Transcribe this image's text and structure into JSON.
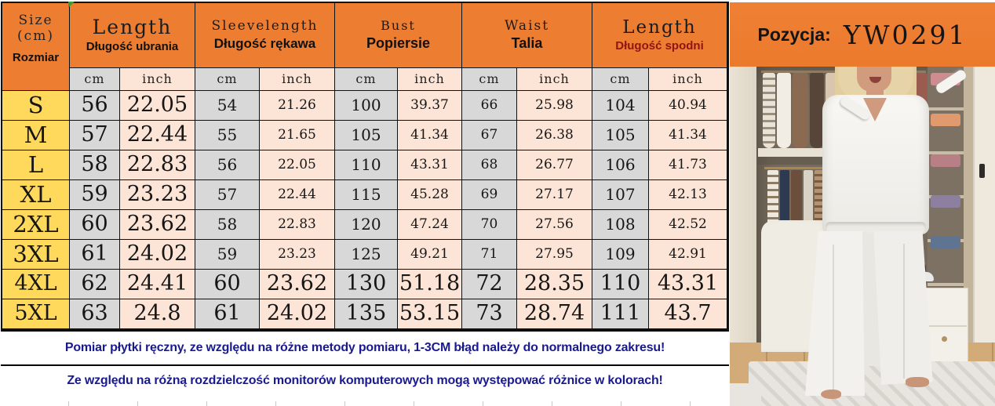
{
  "sheet": {
    "size_header": {
      "line1": "Size",
      "line2": "(cm)",
      "line3": "Rozmiar"
    },
    "columns": [
      {
        "en": "Length",
        "pl": "Długość ubrania"
      },
      {
        "en": "Sleevelength",
        "pl": "Długość rękawa"
      },
      {
        "en": "Bust",
        "pl": "Popiersie"
      },
      {
        "en": "Waist",
        "pl": "Talia"
      },
      {
        "en": "Length",
        "pl": "Długość spodni"
      }
    ],
    "units": {
      "cm": "cm",
      "inch": "inch"
    },
    "rows": [
      {
        "size": "S",
        "values": [
          "56",
          "22.05",
          "54",
          "21.26",
          "100",
          "39.37",
          "66",
          "25.98",
          "104",
          "40.94"
        ]
      },
      {
        "size": "M",
        "values": [
          "57",
          "22.44",
          "55",
          "21.65",
          "105",
          "41.34",
          "67",
          "26.38",
          "105",
          "41.34"
        ]
      },
      {
        "size": "L",
        "values": [
          "58",
          "22.83",
          "56",
          "22.05",
          "110",
          "43.31",
          "68",
          "26.77",
          "106",
          "41.73"
        ]
      },
      {
        "size": "XL",
        "values": [
          "59",
          "23.23",
          "57",
          "22.44",
          "115",
          "45.28",
          "69",
          "27.17",
          "107",
          "42.13"
        ]
      },
      {
        "size": "2XL",
        "values": [
          "60",
          "23.62",
          "58",
          "22.83",
          "120",
          "47.24",
          "70",
          "27.56",
          "108",
          "42.52"
        ]
      },
      {
        "size": "3XL",
        "values": [
          "61",
          "24.02",
          "59",
          "23.23",
          "125",
          "49.21",
          "71",
          "27.95",
          "109",
          "42.91"
        ]
      },
      {
        "size": "4XL",
        "values": [
          "62",
          "24.41",
          "60",
          "23.62",
          "130",
          "51.18",
          "72",
          "28.35",
          "110",
          "43.31"
        ]
      },
      {
        "size": "5XL",
        "values": [
          "63",
          "24.8",
          "61",
          "24.02",
          "135",
          "53.15",
          "73",
          "28.74",
          "111",
          "43.7"
        ]
      }
    ],
    "big_rows": [
      "4XL",
      "5XL"
    ]
  },
  "position": {
    "label": "Pozycja:",
    "code": "YW0291"
  },
  "notes": [
    "Pomiar płytki ręczny, ze względu na różne metody pomiaru, 1-3CM błąd należy do normalnego zakresu!",
    "Ze względu na różną rozdzielczość monitorów komputerowych mogą występować różnice w kolorach!"
  ],
  "colors": {
    "header_orange": "#ED7D31",
    "size_yellow": "#FFD95C",
    "cm_gray": "#D8D8D8",
    "inch_peach": "#FCE4D6",
    "note_navy": "#1A1A8F",
    "accent_maroon": "#8F1515"
  }
}
